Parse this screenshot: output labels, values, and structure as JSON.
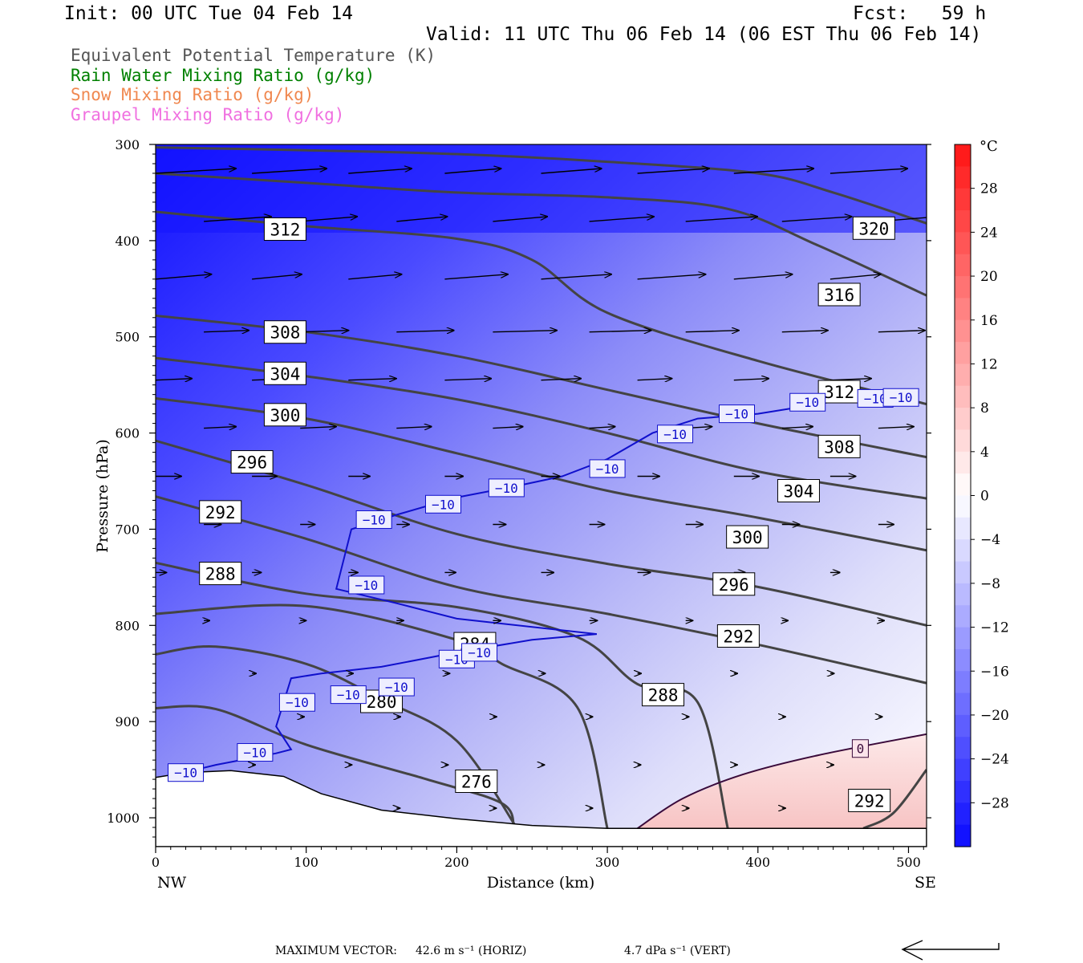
{
  "header": {
    "init": "Init: 00 UTC Tue 04 Feb 14",
    "fcst": "Fcst:   59 h",
    "valid": "Valid: 11 UTC Thu 06 Feb 14 (06 EST Thu 06 Feb 14)"
  },
  "legend": [
    {
      "text": "Equivalent Potential Temperature (K)",
      "color": "#555555"
    },
    {
      "text": "Rain Water Mixing Ratio (g/kg)",
      "color": "#008000"
    },
    {
      "text": "Snow Mixing Ratio (g/kg)",
      "color": "#f08850"
    },
    {
      "text": "Graupel Mixing Ratio (g/kg)",
      "color": "#f070e0"
    }
  ],
  "footer": {
    "label": "MAXIMUM VECTOR:",
    "horiz": "42.6 m s⁻¹ (HORIZ)",
    "vert": "4.7 dPa s⁻¹ (VERT)"
  },
  "chart_data": {
    "type": "cross-section",
    "xlabel": "Distance (km)",
    "ylabel": "Pressure (hPa)",
    "xlim": [
      0,
      512
    ],
    "ylim": [
      1030,
      300
    ],
    "x_ticks": [
      0,
      100,
      200,
      300,
      400,
      500
    ],
    "y_ticks": [
      300,
      400,
      500,
      600,
      700,
      800,
      900,
      1000
    ],
    "x_end_labels": {
      "left": "NW",
      "right": "SE"
    },
    "colorbar": {
      "unit": "°C",
      "labels": [
        "28",
        "24",
        "20",
        "16",
        "12",
        "8",
        "4",
        "0",
        "−4",
        "−8",
        "−12",
        "−16",
        "−20",
        "−24",
        "−28"
      ],
      "levels": [
        -32,
        -30,
        -28,
        -26,
        -24,
        -22,
        -20,
        -18,
        -16,
        -14,
        -12,
        -10,
        -8,
        -6,
        -4,
        -2,
        0,
        2,
        4,
        6,
        8,
        10,
        12,
        14,
        16,
        18,
        20,
        22,
        24,
        26,
        28,
        30,
        32
      ]
    },
    "theta_e_contours": [
      {
        "value": 320,
        "pts": [
          [
            0,
            303
          ],
          [
            100,
            306
          ],
          [
            200,
            310
          ],
          [
            300,
            318
          ],
          [
            400,
            330
          ],
          [
            450,
            350
          ],
          [
            512,
            382
          ]
        ],
        "label_at": [
          477,
          387
        ]
      },
      {
        "value": 316,
        "pts": [
          [
            0,
            330
          ],
          [
            100,
            340
          ],
          [
            200,
            350
          ],
          [
            300,
            355
          ],
          [
            380,
            367
          ],
          [
            440,
            405
          ],
          [
            512,
            457
          ]
        ],
        "label_at": [
          454,
          456
        ]
      },
      {
        "value": 312,
        "pts": [
          [
            0,
            370
          ],
          [
            100,
            385
          ],
          [
            200,
            398
          ],
          [
            250,
            420
          ],
          [
            300,
            475
          ],
          [
            400,
            525
          ],
          [
            512,
            570
          ]
        ],
        "label_at": [
          454,
          557
        ]
      },
      {
        "value": 308,
        "pts": [
          [
            0,
            478
          ],
          [
            100,
            495
          ],
          [
            200,
            520
          ],
          [
            300,
            555
          ],
          [
            400,
            590
          ],
          [
            512,
            625
          ]
        ],
        "label_at": [
          454,
          614
        ]
      },
      {
        "value": 304,
        "pts": [
          [
            0,
            522
          ],
          [
            100,
            541
          ],
          [
            200,
            565
          ],
          [
            300,
            600
          ],
          [
            400,
            640
          ],
          [
            512,
            668
          ]
        ],
        "label_at": [
          427,
          660
        ]
      },
      {
        "value": 300,
        "pts": [
          [
            0,
            564
          ],
          [
            100,
            585
          ],
          [
            200,
            621
          ],
          [
            300,
            660
          ],
          [
            400,
            688
          ],
          [
            512,
            722
          ]
        ],
        "label_at": [
          393,
          708
        ]
      },
      {
        "value": 296,
        "pts": [
          [
            0,
            608
          ],
          [
            100,
            654
          ],
          [
            200,
            705
          ],
          [
            300,
            736
          ],
          [
            400,
            760
          ],
          [
            512,
            800
          ]
        ],
        "label_at": [
          384,
          757
        ]
      },
      {
        "value": 292,
        "pts": [
          [
            0,
            666
          ],
          [
            100,
            710
          ],
          [
            200,
            760
          ],
          [
            300,
            788
          ],
          [
            400,
            820
          ],
          [
            512,
            860
          ]
        ],
        "label_at": [
          387,
          811
        ]
      },
      {
        "value": 288,
        "pts": [
          [
            0,
            735
          ],
          [
            100,
            767
          ],
          [
            200,
            781
          ],
          [
            280,
            812
          ],
          [
            320,
            861
          ],
          [
            360,
            880
          ],
          [
            380,
            1011
          ]
        ],
        "label_at": [
          337,
          872
        ]
      },
      {
        "value": 284,
        "pts": [
          [
            0,
            788
          ],
          [
            100,
            780
          ],
          [
            200,
            815
          ],
          [
            230,
            840
          ],
          [
            280,
            885
          ],
          [
            300,
            1011
          ]
        ],
        "label_at": [
          212,
          819
        ]
      },
      {
        "value": 280,
        "pts": [
          [
            0,
            830
          ],
          [
            40,
            822
          ],
          [
            100,
            840
          ],
          [
            150,
            877
          ],
          [
            200,
            920
          ],
          [
            240,
            1011
          ]
        ],
        "label_at": [
          150,
          879
        ]
      },
      {
        "value": 276,
        "pts": [
          [
            0,
            886
          ],
          [
            40,
            887
          ],
          [
            100,
            924
          ],
          [
            180,
            960
          ],
          [
            230,
            985
          ],
          [
            238,
            1011
          ]
        ],
        "label_at": [
          213,
          962
        ]
      },
      {
        "value": 292,
        "pts": [
          [
            470,
            1011
          ],
          [
            490,
            995
          ],
          [
            512,
            950
          ]
        ],
        "label_at": [
          474,
          982
        ]
      }
    ],
    "theta_e_labels_upper": [
      {
        "value": 312,
        "at": [
          86,
          388
        ]
      },
      {
        "value": 308,
        "at": [
          86,
          495
        ]
      },
      {
        "value": 304,
        "at": [
          86,
          538
        ]
      },
      {
        "value": 300,
        "at": [
          86,
          581
        ]
      },
      {
        "value": 296,
        "at": [
          64,
          630
        ]
      },
      {
        "value": 292,
        "at": [
          43,
          682
        ]
      },
      {
        "value": 288,
        "at": [
          43,
          746
        ]
      }
    ],
    "isotherm_minus10": {
      "value": -10,
      "color": "#1010cc",
      "pts_upper": [
        [
          0,
          960
        ],
        [
          40,
          945
        ],
        [
          80,
          933
        ],
        [
          90,
          929
        ],
        [
          80,
          905
        ],
        [
          90,
          855
        ],
        [
          110,
          850
        ],
        [
          150,
          843
        ],
        [
          200,
          828
        ],
        [
          250,
          815
        ],
        [
          293,
          809
        ],
        [
          200,
          793
        ],
        [
          160,
          777
        ],
        [
          120,
          762
        ],
        [
          130,
          700
        ],
        [
          160,
          685
        ],
        [
          200,
          667
        ],
        [
          240,
          655
        ],
        [
          270,
          645
        ],
        [
          300,
          627
        ],
        [
          330,
          600
        ],
        [
          360,
          585
        ],
        [
          400,
          580
        ],
        [
          440,
          570
        ],
        [
          470,
          561
        ],
        [
          505,
          558
        ]
      ],
      "labels": [
        [
          20,
          953
        ],
        [
          66,
          932
        ],
        [
          94,
          880
        ],
        [
          128,
          872
        ],
        [
          160,
          864
        ],
        [
          200,
          835
        ],
        [
          215,
          828
        ],
        [
          140,
          758
        ],
        [
          145,
          690
        ],
        [
          191,
          674
        ],
        [
          233,
          657
        ],
        [
          300,
          637
        ],
        [
          345,
          601
        ],
        [
          386,
          580
        ],
        [
          433,
          568
        ],
        [
          478,
          564
        ],
        [
          495,
          563
        ]
      ]
    },
    "isotherm_zero": {
      "value": 0,
      "color": "#3a0a3a",
      "pts": [
        [
          320,
          1011
        ],
        [
          350,
          980
        ],
        [
          390,
          955
        ],
        [
          440,
          935
        ],
        [
          512,
          913
        ]
      ],
      "label_at": [
        468,
        928
      ]
    },
    "wind_vectors_note": "westerly cross-section wind arrows, magnitude decreasing downward"
  }
}
